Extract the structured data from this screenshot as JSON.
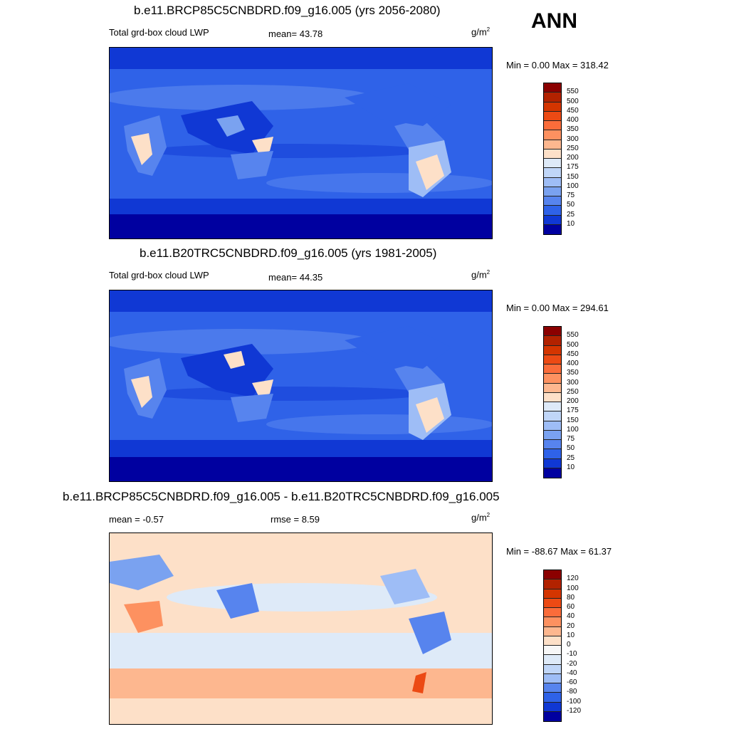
{
  "season": "ANN",
  "panels": [
    {
      "title": "b.e11.BRCP85C5CNBDRD.f09_g16.005 (yrs 2056-2080)",
      "left": "Total grd-box cloud LWP",
      "center": "mean=  43.78",
      "units": "g/m",
      "units_sup": "2",
      "minmax": "Min =   0.00 Max = 318.42"
    },
    {
      "title": "b.e11.B20TRC5CNBDRD.f09_g16.005 (yrs 1981-2005)",
      "left": "Total grd-box cloud LWP",
      "center": "mean=  44.35",
      "units": "g/m",
      "units_sup": "2",
      "minmax": "Min =   0.00 Max = 294.61"
    },
    {
      "title": "b.e11.BRCP85C5CNBDRD.f09_g16.005 - b.e11.B20TRC5CNBDRD.f09_g16.005",
      "left": "mean =  -0.57",
      "center": "rmse =   8.59",
      "units": "g/m",
      "units_sup": "2",
      "minmax": "Min = -88.67 Max =  61.37"
    }
  ],
  "colorbars": {
    "absolute": {
      "labels": [
        "550",
        "500",
        "450",
        "400",
        "350",
        "300",
        "250",
        "200",
        "175",
        "150",
        "100",
        "75",
        "50",
        "25",
        "10"
      ],
      "colors": [
        "#8b0000",
        "#b22200",
        "#d43500",
        "#ec4a14",
        "#fa6c3a",
        "#fd9160",
        "#fdb78f",
        "#fde0c8",
        "#deeaf8",
        "#c0d6f8",
        "#9ebdf6",
        "#7aa2f0",
        "#5784ee",
        "#2f62e8",
        "#1038d4",
        "#0000a0"
      ]
    },
    "difference": {
      "labels": [
        "120",
        "100",
        "80",
        "60",
        "40",
        "20",
        "10",
        "0",
        "-10",
        "-20",
        "-40",
        "-60",
        "-80",
        "-100",
        "-120"
      ],
      "colors": [
        "#8b0000",
        "#b22200",
        "#d43500",
        "#ec4a14",
        "#fa6c3a",
        "#fd9160",
        "#fdb78f",
        "#fde0c8",
        "#f7f7f7",
        "#deeaf8",
        "#c0d6f8",
        "#9ebdf6",
        "#5784ee",
        "#2f62e8",
        "#1038d4",
        "#0000a0"
      ]
    }
  }
}
